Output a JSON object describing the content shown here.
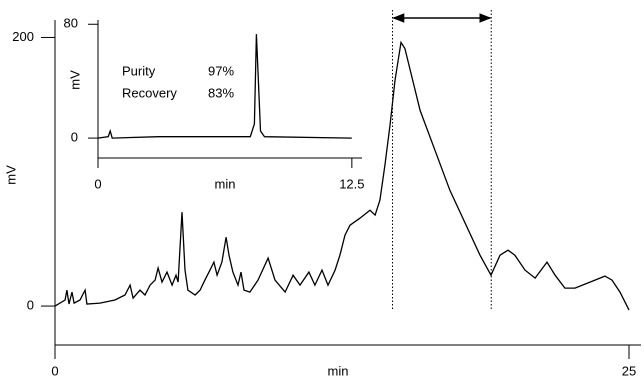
{
  "chart_data": [
    {
      "type": "line",
      "x_label": "min",
      "y_label": "mV",
      "color": "#000000",
      "xlim": [
        0,
        25
      ],
      "ylim": [
        -29,
        213
      ],
      "xticks": [
        0,
        25
      ],
      "yticks": [
        0,
        200
      ],
      "fraction_window": [
        14.7,
        19.0
      ],
      "x": [
        0,
        0.44,
        0.52,
        0.61,
        0.74,
        0.83,
        1.09,
        1.31,
        1.39,
        1.96,
        2.61,
        3.05,
        3.27,
        3.4,
        3.7,
        3.92,
        4.14,
        4.36,
        4.49,
        4.66,
        4.88,
        5.1,
        5.27,
        5.36,
        5.53,
        5.66,
        5.79,
        6.1,
        6.32,
        6.53,
        6.75,
        6.92,
        7.06,
        7.27,
        7.45,
        7.58,
        7.75,
        7.97,
        8.1,
        8.23,
        8.49,
        8.84,
        9.28,
        9.58,
        10.02,
        10.37,
        10.67,
        11.06,
        11.32,
        11.63,
        11.89,
        12.2,
        12.41,
        12.63,
        12.85,
        13.28,
        13.72,
        13.94,
        14.15,
        14.37,
        14.59,
        14.81,
        15.07,
        15.24,
        15.9,
        17.2,
        18.51,
        18.99,
        19.38,
        19.73,
        20.03,
        20.47,
        20.91,
        21.43,
        21.78,
        22.21,
        22.65,
        23.3,
        23.95,
        24.26,
        24.61,
        25
      ],
      "values": [
        0,
        4.5,
        11.9,
        1.5,
        10.4,
        2.2,
        4.5,
        11.9,
        1.5,
        2.2,
        4.5,
        8.2,
        15.6,
        5.9,
        11.9,
        8.2,
        15.6,
        19.3,
        28.3,
        17.8,
        25.3,
        15.6,
        23,
        17.8,
        69.9,
        26.8,
        11.9,
        8.2,
        11.9,
        19.3,
        26.8,
        32.7,
        23,
        32.7,
        51.3,
        37.9,
        25.3,
        15.6,
        25.3,
        11.9,
        10.4,
        19.3,
        35.7,
        19.3,
        10.4,
        23,
        15.6,
        25.3,
        15.6,
        26.8,
        15.6,
        26.8,
        37.9,
        52.8,
        60.2,
        65.4,
        71.4,
        67.7,
        78.8,
        104.8,
        134.6,
        168,
        196.3,
        191.8,
        145.7,
        86.2,
        37.9,
        23,
        37.9,
        41.6,
        37.9,
        26.8,
        20.8,
        32.7,
        23,
        13.4,
        13.4,
        17.8,
        22.3,
        19.3,
        10.4,
        -3
      ]
    },
    {
      "type": "line",
      "x_label": "min",
      "y_label": "mV",
      "color": "#000000",
      "xlim": [
        0,
        13
      ],
      "ylim": [
        -14,
        83
      ],
      "xticks": [
        0,
        12.5
      ],
      "yticks": [
        0,
        80
      ],
      "annotations": [
        [
          "Purity",
          "97%"
        ],
        [
          "Recovery",
          "83%"
        ]
      ],
      "x": [
        0,
        0.5,
        0.6,
        0.7,
        3,
        7.5,
        7.7,
        7.8,
        7.9,
        8.0,
        8.2,
        12.5
      ],
      "values": [
        0,
        1,
        5,
        0,
        1,
        1,
        10,
        73,
        40,
        5,
        1,
        0
      ]
    }
  ]
}
